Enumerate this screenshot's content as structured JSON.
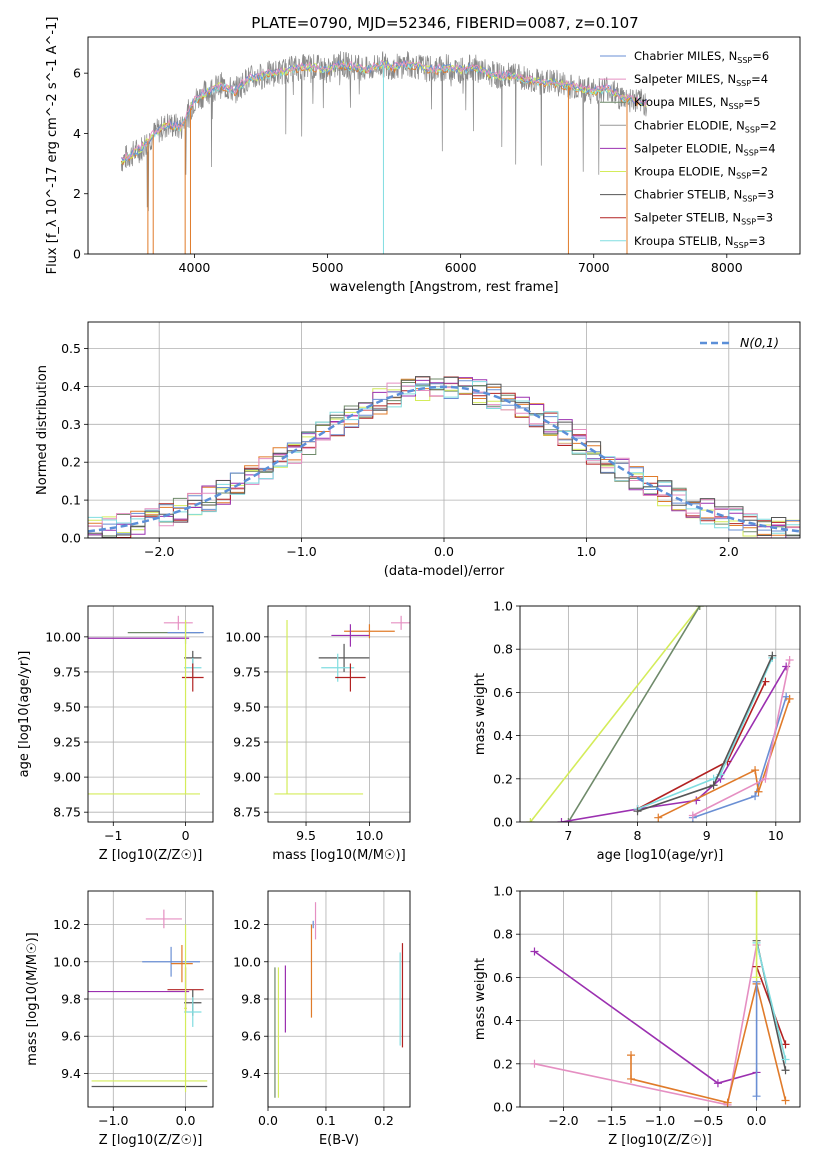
{
  "title": "PLATE=0790, MJD=52346, FIBERID=0087, z=0.107",
  "colors": [
    "#6a8fd4",
    "#e58fc2",
    "#6f8a6a",
    "#999999",
    "#9b30b0",
    "#d4ec5a",
    "#555555",
    "#b22222",
    "#80dde0",
    "#e07b2a"
  ],
  "models": [
    {
      "label": "Chabrier MILES, N",
      "sub": "SSP",
      "suffix": "=6",
      "color": "#6a8fd4"
    },
    {
      "label": "Salpeter MILES, N",
      "sub": "SSP",
      "suffix": "=4",
      "color": "#e58fc2"
    },
    {
      "label": "Kroupa MILES, N",
      "sub": "SSP",
      "suffix": "=5",
      "color": "#6f8a6a"
    },
    {
      "label": "Chabrier ELODIE, N",
      "sub": "SSP",
      "suffix": "=2",
      "color": "#999999"
    },
    {
      "label": "Salpeter ELODIE, N",
      "sub": "SSP",
      "suffix": "=4",
      "color": "#9b30b0"
    },
    {
      "label": "Kroupa ELODIE, N",
      "sub": "SSP",
      "suffix": "=2",
      "color": "#d4ec5a"
    },
    {
      "label": "Chabrier STELIB, N",
      "sub": "SSP",
      "suffix": "=3",
      "color": "#555555"
    },
    {
      "label": "Salpeter STELIB, N",
      "sub": "SSP",
      "suffix": "=3",
      "color": "#b22222"
    },
    {
      "label": "Kroupa STELIB, N",
      "sub": "SSP",
      "suffix": "=3",
      "color": "#80dde0"
    }
  ],
  "chart_data": [
    {
      "type": "line",
      "name": "spectrum",
      "xlabel": "wavelength [Angstrom, rest frame]",
      "ylabel": "Flux [f_λ 10^-17 erg cm^-2 s^-1 A^-1]",
      "xlim": [
        3200,
        8550
      ],
      "ylim": [
        0,
        7.2
      ],
      "xticks": [
        4000,
        5000,
        6000,
        7000,
        8000
      ],
      "yticks": [
        0,
        2,
        4,
        6
      ],
      "spectrum_x": [
        3450,
        3600,
        3700,
        3800,
        3900,
        4000,
        4100,
        4200,
        4300,
        4400,
        4500,
        4600,
        4700,
        4800,
        4900,
        5000,
        5100,
        5200,
        5300,
        5400,
        5500,
        5600,
        5700,
        5800,
        5900,
        6000,
        6100,
        6200,
        6300,
        6400,
        6500,
        6600,
        6700,
        6800,
        6900,
        7000,
        7100,
        7200,
        7300,
        7400
      ],
      "spectrum_y": [
        3.1,
        3.5,
        4.0,
        4.3,
        4.2,
        5.1,
        5.4,
        5.6,
        5.4,
        5.8,
        5.9,
        6.0,
        6.1,
        6.2,
        6.2,
        6.1,
        6.3,
        6.2,
        6.1,
        6.3,
        6.2,
        6.3,
        6.2,
        6.1,
        6.2,
        6.1,
        6.2,
        6.0,
        5.9,
        5.9,
        5.8,
        5.7,
        5.7,
        5.6,
        5.5,
        5.4,
        5.5,
        5.2,
        5.1,
        5.0
      ],
      "grid": false,
      "legend": "top-right"
    },
    {
      "type": "line",
      "name": "residuals",
      "xlabel": "(data-model)/error",
      "ylabel": "Normed distribution",
      "xlim": [
        -2.5,
        2.5
      ],
      "ylim": [
        0,
        0.57
      ],
      "xticks": [
        -2,
        -1,
        0,
        1,
        2
      ],
      "yticks": [
        0.0,
        0.1,
        0.2,
        0.3,
        0.4,
        0.5
      ],
      "gaussian_label": "N(0,1)",
      "grid": true,
      "legend": "top-right"
    },
    {
      "type": "scatter",
      "name": "age-vs-Z",
      "xlabel": "Z [log10(Z/Z☉)]",
      "ylabel": "age  [log10(age/yr)]",
      "xlim": [
        -1.35,
        0.38
      ],
      "ylim": [
        8.68,
        10.22
      ],
      "xticks": [
        -1,
        0
      ],
      "yticks": [
        8.75,
        9.0,
        9.25,
        9.5,
        9.75,
        10.0
      ],
      "points": [
        {
          "x": -0.1,
          "y": 10.1,
          "ex": 0.2,
          "ey": 0.05,
          "c": 1
        },
        {
          "x": -0.3,
          "y": 10.03,
          "ex": 0.5,
          "ey": 0.0,
          "c": 2
        },
        {
          "x": -0.65,
          "y": 9.99,
          "ex": 0.7,
          "ey": 0.0,
          "c": 4
        },
        {
          "x": 0.0,
          "y": 10.03,
          "ex": 0.25,
          "ey": 0.08,
          "c": 0
        },
        {
          "x": 0.1,
          "y": 9.85,
          "ex": 0.12,
          "ey": 0.05,
          "c": 6
        },
        {
          "x": 0.1,
          "y": 9.78,
          "ex": 0.12,
          "ey": 0.07,
          "c": 8
        },
        {
          "x": 0.1,
          "y": 9.71,
          "ex": 0.15,
          "ey": 0.1,
          "c": 7
        },
        {
          "x": -0.6,
          "y": 8.88,
          "ex": 0.8,
          "ey": 0.0,
          "c": 5
        },
        {
          "x": 0.0,
          "y": 9.5,
          "ex": 0.02,
          "ey": 0.62,
          "c": 5
        }
      ],
      "grid": true
    },
    {
      "type": "scatter",
      "name": "age-vs-mass",
      "xlabel": "mass [log10(M/M☉)]",
      "ylabel": "",
      "xlim": [
        9.2,
        10.32
      ],
      "ylim": [
        8.68,
        10.22
      ],
      "xticks": [
        9.5,
        10.0
      ],
      "yticks": [
        8.75,
        9.0,
        9.25,
        9.5,
        9.75,
        10.0
      ],
      "points": [
        {
          "x": 10.25,
          "y": 10.1,
          "ex": 0.08,
          "ey": 0.05,
          "c": 1
        },
        {
          "x": 10.0,
          "y": 10.04,
          "ex": 0.2,
          "ey": 0.05,
          "c": 9
        },
        {
          "x": 9.85,
          "y": 10.01,
          "ex": 0.15,
          "ey": 0.08,
          "c": 4
        },
        {
          "x": 9.8,
          "y": 9.85,
          "ex": 0.2,
          "ey": 0.1,
          "c": 6
        },
        {
          "x": 9.75,
          "y": 9.78,
          "ex": 0.13,
          "ey": 0.1,
          "c": 8
        },
        {
          "x": 9.85,
          "y": 9.71,
          "ex": 0.12,
          "ey": 0.1,
          "c": 7
        },
        {
          "x": 9.6,
          "y": 8.88,
          "ex": 0.35,
          "ey": 0.0,
          "c": 5
        },
        {
          "x": 9.35,
          "y": 9.5,
          "ex": 0.0,
          "ey": 0.62,
          "c": 5
        }
      ],
      "grid": true
    },
    {
      "type": "line",
      "name": "mass-weight-vs-age",
      "xlabel": "age  [log10(age/yr)]",
      "ylabel": "mass weight",
      "xlim": [
        6.3,
        10.35
      ],
      "ylim": [
        0,
        1.0
      ],
      "xticks": [
        7,
        8,
        9,
        10
      ],
      "yticks": [
        0.0,
        0.2,
        0.4,
        0.6,
        0.8,
        1.0
      ],
      "series": [
        {
          "c": 5,
          "x": [
            6.45,
            8.9
          ],
          "y": [
            0,
            1.0
          ]
        },
        {
          "c": 2,
          "x": [
            7.0,
            8.9
          ],
          "y": [
            0,
            1.0
          ]
        },
        {
          "c": 4,
          "x": [
            6.9,
            8.0,
            8.85,
            9.2,
            10.15
          ],
          "y": [
            0,
            0.06,
            0.1,
            0.2,
            0.72
          ]
        },
        {
          "c": 7,
          "x": [
            8.0,
            9.3,
            9.85
          ],
          "y": [
            0.06,
            0.28,
            0.65
          ]
        },
        {
          "c": 8,
          "x": [
            8.0,
            9.1,
            9.2,
            9.95
          ],
          "y": [
            0.06,
            0.2,
            0.22,
            0.76
          ]
        },
        {
          "c": 6,
          "x": [
            8.0,
            9.1,
            9.95
          ],
          "y": [
            0.05,
            0.17,
            0.77
          ]
        },
        {
          "c": 0,
          "x": [
            8.8,
            9.7,
            10.15
          ],
          "y": [
            0.02,
            0.12,
            0.58
          ]
        },
        {
          "c": 9,
          "x": [
            8.3,
            9.7,
            9.75,
            10.2
          ],
          "y": [
            0.02,
            0.24,
            0.14,
            0.57
          ]
        },
        {
          "c": 1,
          "x": [
            8.8,
            9.85,
            10.2
          ],
          "y": [
            0.03,
            0.2,
            0.75
          ]
        }
      ],
      "grid": true
    },
    {
      "type": "scatter",
      "name": "mass-vs-Z",
      "xlabel": "Z [log10(Z/Z☉)]",
      "ylabel": "mass [log10(M/M☉)]",
      "xlim": [
        -1.35,
        0.38
      ],
      "ylim": [
        9.22,
        10.38
      ],
      "xticks": [
        -1,
        0
      ],
      "yticks": [
        9.4,
        9.6,
        9.8,
        10.0,
        10.2
      ],
      "points": [
        {
          "x": -0.3,
          "y": 10.23,
          "ex": 0.25,
          "ey": 0.05,
          "c": 1
        },
        {
          "x": -0.2,
          "y": 10.0,
          "ex": 0.4,
          "ey": 0.08,
          "c": 0
        },
        {
          "x": -0.05,
          "y": 9.99,
          "ex": 0.15,
          "ey": 0.1,
          "c": 9
        },
        {
          "x": -0.65,
          "y": 9.84,
          "ex": 0.7,
          "ey": 0.0,
          "c": 4
        },
        {
          "x": 0.0,
          "y": 9.85,
          "ex": 0.25,
          "ey": 0.12,
          "c": 7
        },
        {
          "x": 0.1,
          "y": 9.78,
          "ex": 0.12,
          "ey": 0.07,
          "c": 6
        },
        {
          "x": 0.1,
          "y": 9.73,
          "ex": 0.12,
          "ey": 0.08,
          "c": 8
        },
        {
          "x": -0.5,
          "y": 9.36,
          "ex": 0.8,
          "ey": 0.0,
          "c": 5
        },
        {
          "x": -0.5,
          "y": 9.33,
          "ex": 0.8,
          "ey": 0.0,
          "c": 6
        },
        {
          "x": 0.0,
          "y": 9.75,
          "ex": 0.02,
          "ey": 0.45,
          "c": 5
        }
      ],
      "grid": true
    },
    {
      "type": "scatter",
      "name": "mass-vs-EBV",
      "xlabel": "E(B-V)",
      "ylabel": "",
      "xlim": [
        0.0,
        0.245
      ],
      "ylim": [
        9.22,
        10.38
      ],
      "xticks": [
        0.0,
        0.1,
        0.2
      ],
      "yticks": [
        9.4,
        9.6,
        9.8,
        10.0,
        10.2
      ],
      "points": [
        {
          "x": 0.012,
          "y": 9.62,
          "ex": 0,
          "ey": 0.35,
          "c": 2
        },
        {
          "x": 0.018,
          "y": 9.62,
          "ex": 0,
          "ey": 0.35,
          "c": 5
        },
        {
          "x": 0.03,
          "y": 9.8,
          "ex": 0,
          "ey": 0.18,
          "c": 4
        },
        {
          "x": 0.075,
          "y": 9.95,
          "ex": 0,
          "ey": 0.25,
          "c": 9
        },
        {
          "x": 0.078,
          "y": 10.2,
          "ex": 0,
          "ey": 0.02,
          "c": 0
        },
        {
          "x": 0.082,
          "y": 10.22,
          "ex": 0,
          "ey": 0.1,
          "c": 1
        },
        {
          "x": 0.228,
          "y": 9.8,
          "ex": 0,
          "ey": 0.25,
          "c": 8
        },
        {
          "x": 0.232,
          "y": 9.82,
          "ex": 0,
          "ey": 0.28,
          "c": 7
        }
      ],
      "grid": true
    },
    {
      "type": "line",
      "name": "mass-weight-vs-Z",
      "xlabel": "Z [log10(Z/Z☉)]",
      "ylabel": "mass weight",
      "xlim": [
        -2.45,
        0.45
      ],
      "ylim": [
        0,
        1.0
      ],
      "xticks": [
        -2.0,
        -1.5,
        -1.0,
        -0.5,
        0.0
      ],
      "yticks": [
        0.0,
        0.2,
        0.4,
        0.6,
        0.8,
        1.0
      ],
      "series": [
        {
          "c": 4,
          "x": [
            -2.3,
            -0.4,
            0.0
          ],
          "y": [
            0.72,
            0.11,
            0.16
          ]
        },
        {
          "c": 1,
          "x": [
            -2.3,
            -0.3,
            0.0
          ],
          "y": [
            0.2,
            0.01,
            0.75
          ]
        },
        {
          "c": 9,
          "x": [
            -1.3,
            -1.3,
            -0.3,
            0.0,
            0.3
          ],
          "y": [
            0.24,
            0.13,
            0.02,
            0.57,
            0.03
          ]
        },
        {
          "c": 7,
          "x": [
            0.0,
            0.3
          ],
          "y": [
            0.65,
            0.29
          ]
        },
        {
          "c": 6,
          "x": [
            0.0,
            0.3
          ],
          "y": [
            0.77,
            0.17
          ]
        },
        {
          "c": 8,
          "x": [
            0.0,
            0.3
          ],
          "y": [
            0.76,
            0.22
          ]
        },
        {
          "c": 0,
          "x": [
            0.0,
            0.0
          ],
          "y": [
            0.58,
            0.05
          ]
        },
        {
          "c": 5,
          "x": [
            0.0,
            0.0
          ],
          "y": [
            1.0,
            0.6
          ]
        }
      ],
      "grid": true
    }
  ]
}
